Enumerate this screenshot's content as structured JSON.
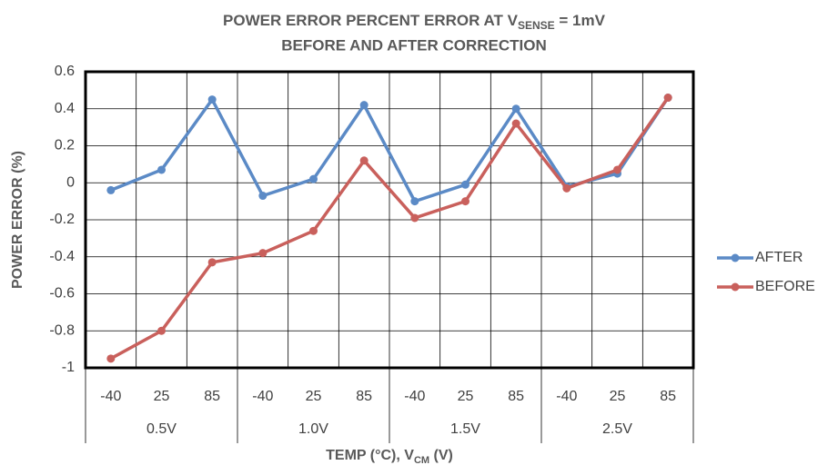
{
  "chart_data": {
    "type": "line",
    "title": [
      "POWER ERROR PERCENT  ERROR AT V",
      "SENSE",
      " = 1mV"
    ],
    "subtitle": "BEFORE AND AFTER CORRECTION",
    "y_label": "POWER ERROR (%)",
    "x_label": [
      "TEMP (°C),  V",
      "CM",
      " (V)"
    ],
    "categories": [
      "-40",
      "25",
      "85",
      "-40",
      "25",
      "85",
      "-40",
      "25",
      "85",
      "-40",
      "25",
      "85"
    ],
    "groups": [
      "0.5V",
      "1.0V",
      "1.5V",
      "2.5V"
    ],
    "series": [
      {
        "name": "AFTER",
        "color": "#5b8ac6",
        "values": [
          -0.04,
          0.07,
          0.45,
          -0.07,
          0.02,
          0.42,
          -0.1,
          -0.01,
          0.4,
          -0.02,
          0.05,
          0.46
        ]
      },
      {
        "name": "BEFORE",
        "color": "#c9605c",
        "values": [
          -0.95,
          -0.8,
          -0.43,
          -0.38,
          -0.26,
          0.12,
          -0.19,
          -0.1,
          0.32,
          -0.03,
          0.07,
          0.46
        ]
      }
    ],
    "ylim": [
      -1,
      0.6
    ],
    "yticks": [
      -1,
      -0.8,
      -0.6,
      -0.4,
      -0.2,
      0,
      0.2,
      0.4,
      0.6
    ],
    "grid": true,
    "legend": "right"
  }
}
